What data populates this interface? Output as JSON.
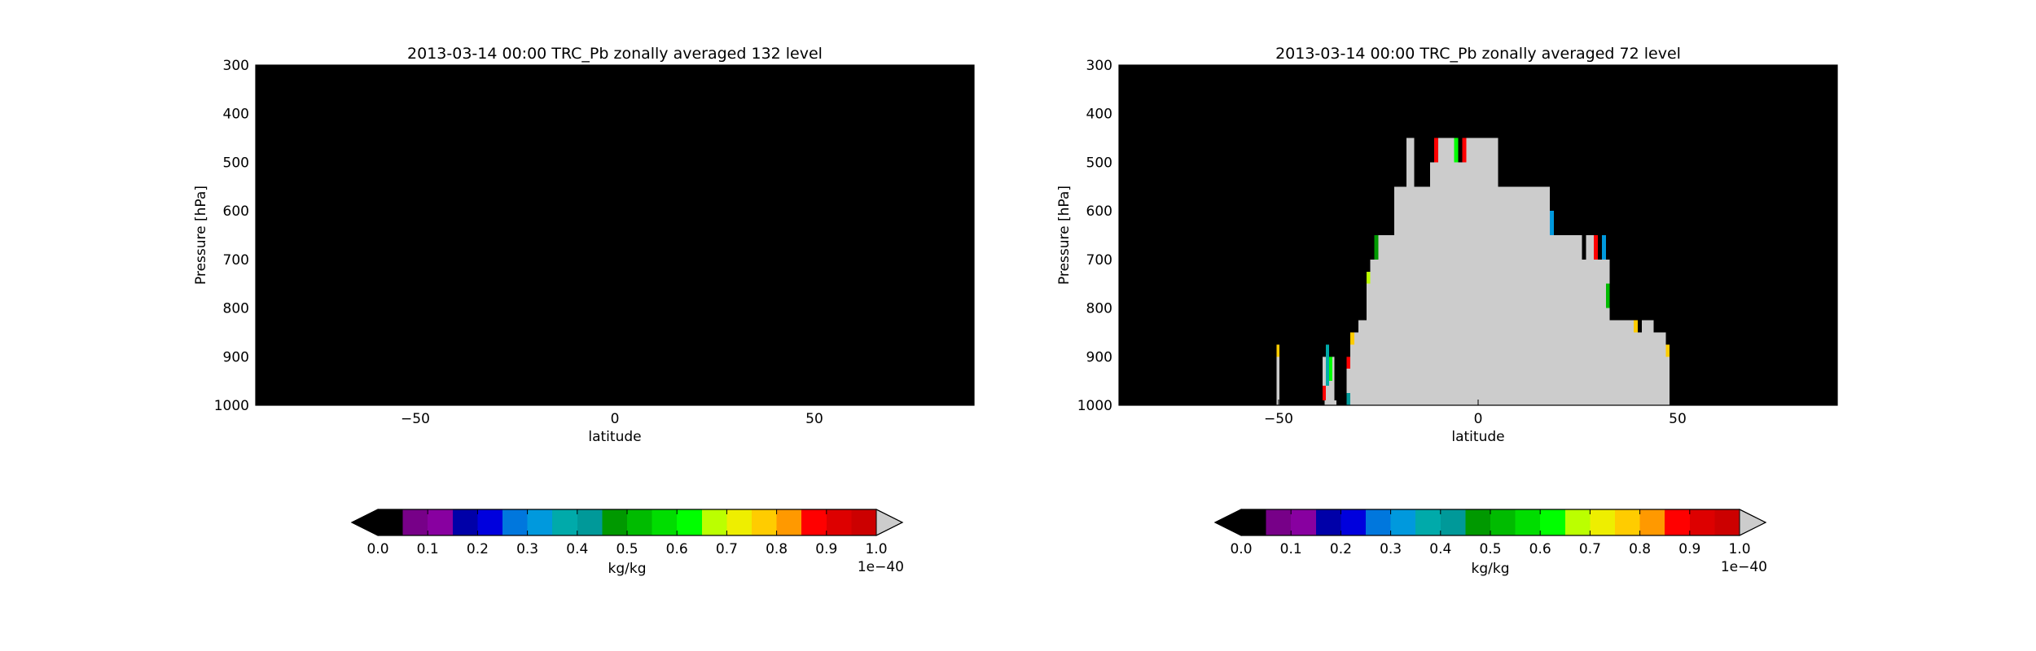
{
  "chart_data": [
    {
      "type": "heatmap",
      "title": "2013-03-14 00:00 TRC_Pb zonally averaged 132 level",
      "xlabel": "latitude",
      "ylabel": "Pressure [hPa]",
      "xlim": [
        -90,
        90
      ],
      "ylim": [
        1000,
        300
      ],
      "xticks": [
        -50,
        0,
        50
      ],
      "xtick_labels": [
        "−50",
        "0",
        "50"
      ],
      "yticks": [
        300,
        400,
        500,
        600,
        700,
        800,
        900,
        1000
      ],
      "ytick_labels": [
        "300",
        "400",
        "500",
        "600",
        "700",
        "800",
        "900",
        "1000"
      ],
      "grid": false,
      "background_value": 0.0,
      "filled_regions": [],
      "colorbar": {
        "label": "kg/kg",
        "min": 0.0,
        "max": 1.0,
        "levels": 20,
        "extend": "both",
        "ticks": [
          0.0,
          0.1,
          0.2,
          0.3,
          0.4,
          0.5,
          0.6,
          0.7,
          0.8,
          0.9,
          1.0
        ],
        "tick_labels": [
          "0.0",
          "0.1",
          "0.2",
          "0.3",
          "0.4",
          "0.5",
          "0.6",
          "0.7",
          "0.8",
          "0.9",
          "1.0"
        ],
        "offset_text": "1e−40"
      }
    },
    {
      "type": "heatmap",
      "title": "2013-03-14 00:00 TRC_Pb zonally averaged 72 level",
      "xlabel": "latitude",
      "ylabel": "Pressure [hPa]",
      "xlim": [
        -90,
        90
      ],
      "ylim": [
        1000,
        300
      ],
      "xticks": [
        -50,
        0,
        50
      ],
      "xtick_labels": [
        "−50",
        "0",
        "50"
      ],
      "yticks": [
        300,
        400,
        500,
        600,
        700,
        800,
        900,
        1000
      ],
      "ytick_labels": [
        "300",
        "400",
        "500",
        "600",
        "700",
        "800",
        "900",
        "1000"
      ],
      "grid": false,
      "background_value": 0.0,
      "filled_regions": [
        {
          "lat": [
            -50.5,
            -49.8
          ],
          "p": [
            875,
            1000
          ],
          "value": 1.0
        },
        {
          "lat": [
            -50.5,
            -49.8
          ],
          "p": [
            875,
            900
          ],
          "value": 0.77
        },
        {
          "lat": [
            -38.5,
            -35.5
          ],
          "p": [
            990,
            1000
          ],
          "value": 1.0
        },
        {
          "lat": [
            -39,
            -36
          ],
          "p": [
            900,
            990
          ],
          "value": 1.0
        },
        {
          "lat": [
            -39,
            -38.2
          ],
          "p": [
            960,
            990
          ],
          "value": 0.86
        },
        {
          "lat": [
            -38.2,
            -37.3
          ],
          "p": [
            875,
            960
          ],
          "value": 0.35
        },
        {
          "lat": [
            -37.3,
            -36.5
          ],
          "p": [
            900,
            950
          ],
          "value": 0.6
        },
        {
          "lat": [
            -33,
            -32
          ],
          "p": [
            975,
            1000
          ],
          "value": 0.4
        },
        {
          "lat": [
            -33,
            -32
          ],
          "p": [
            900,
            975
          ],
          "value": 1.0
        },
        {
          "lat": [
            -33,
            -32
          ],
          "p": [
            900,
            925
          ],
          "value": 0.86
        },
        {
          "lat": [
            -32,
            -30
          ],
          "p": [
            850,
            1000
          ],
          "value": 1.0
        },
        {
          "lat": [
            -32,
            -31
          ],
          "p": [
            850,
            875
          ],
          "value": 0.77
        },
        {
          "lat": [
            -30,
            -28
          ],
          "p": [
            825,
            1000
          ],
          "value": 1.0
        },
        {
          "lat": [
            -28,
            -27
          ],
          "p": [
            725,
            1000
          ],
          "value": 1.0
        },
        {
          "lat": [
            -28,
            -27
          ],
          "p": [
            725,
            750
          ],
          "value": 0.66
        },
        {
          "lat": [
            -27,
            -26
          ],
          "p": [
            700,
            1000
          ],
          "value": 1.0
        },
        {
          "lat": [
            -26,
            -25
          ],
          "p": [
            650,
            1000
          ],
          "value": 1.0
        },
        {
          "lat": [
            -26,
            -25
          ],
          "p": [
            650,
            700
          ],
          "value": 0.45
        },
        {
          "lat": [
            -25,
            -21
          ],
          "p": [
            650,
            1000
          ],
          "value": 1.0
        },
        {
          "lat": [
            -21,
            -18
          ],
          "p": [
            550,
            1000
          ],
          "value": 1.0
        },
        {
          "lat": [
            -18,
            -16
          ],
          "p": [
            450,
            1000
          ],
          "value": 1.0
        },
        {
          "lat": [
            -16,
            -12
          ],
          "p": [
            550,
            1000
          ],
          "value": 1.0
        },
        {
          "lat": [
            -12,
            -11
          ],
          "p": [
            500,
            1000
          ],
          "value": 1.0
        },
        {
          "lat": [
            -11,
            -10
          ],
          "p": [
            450,
            1000
          ],
          "value": 1.0
        },
        {
          "lat": [
            -11,
            -10
          ],
          "p": [
            450,
            500
          ],
          "value": 0.86
        },
        {
          "lat": [
            -10,
            -6
          ],
          "p": [
            450,
            1000
          ],
          "value": 1.0
        },
        {
          "lat": [
            -6,
            -5
          ],
          "p": [
            450,
            1000
          ],
          "value": 1.0
        },
        {
          "lat": [
            -6,
            -5
          ],
          "p": [
            450,
            500
          ],
          "value": 0.6
        },
        {
          "lat": [
            -5,
            -4
          ],
          "p": [
            500,
            1000
          ],
          "value": 1.0
        },
        {
          "lat": [
            -4,
            -3
          ],
          "p": [
            450,
            1000
          ],
          "value": 1.0
        },
        {
          "lat": [
            -4,
            -3
          ],
          "p": [
            450,
            500
          ],
          "value": 0.86
        },
        {
          "lat": [
            -3,
            5
          ],
          "p": [
            450,
            1000
          ],
          "value": 1.0
        },
        {
          "lat": [
            5,
            18
          ],
          "p": [
            550,
            1000
          ],
          "value": 1.0
        },
        {
          "lat": [
            18,
            19
          ],
          "p": [
            600,
            1000
          ],
          "value": 1.0
        },
        {
          "lat": [
            18,
            19
          ],
          "p": [
            600,
            650
          ],
          "value": 0.3
        },
        {
          "lat": [
            19,
            26
          ],
          "p": [
            650,
            1000
          ],
          "value": 1.0
        },
        {
          "lat": [
            26,
            27
          ],
          "p": [
            700,
            1000
          ],
          "value": 1.0
        },
        {
          "lat": [
            27,
            29
          ],
          "p": [
            650,
            1000
          ],
          "value": 1.0
        },
        {
          "lat": [
            29,
            30
          ],
          "p": [
            650,
            1000
          ],
          "value": 1.0
        },
        {
          "lat": [
            29,
            30
          ],
          "p": [
            650,
            700
          ],
          "value": 0.86
        },
        {
          "lat": [
            30,
            31
          ],
          "p": [
            700,
            1000
          ],
          "value": 1.0
        },
        {
          "lat": [
            31,
            32
          ],
          "p": [
            650,
            1000
          ],
          "value": 1.0
        },
        {
          "lat": [
            31,
            32
          ],
          "p": [
            650,
            700
          ],
          "value": 0.3
        },
        {
          "lat": [
            32,
            33
          ],
          "p": [
            700,
            1000
          ],
          "value": 1.0
        },
        {
          "lat": [
            32,
            33
          ],
          "p": [
            750,
            800
          ],
          "value": 0.53
        },
        {
          "lat": [
            33,
            39
          ],
          "p": [
            825,
            1000
          ],
          "value": 1.0
        },
        {
          "lat": [
            39,
            40
          ],
          "p": [
            825,
            1000
          ],
          "value": 1.0
        },
        {
          "lat": [
            39,
            40
          ],
          "p": [
            825,
            850
          ],
          "value": 0.77
        },
        {
          "lat": [
            40,
            41
          ],
          "p": [
            850,
            1000
          ],
          "value": 1.0
        },
        {
          "lat": [
            41,
            44
          ],
          "p": [
            825,
            1000
          ],
          "value": 1.0
        },
        {
          "lat": [
            44,
            47
          ],
          "p": [
            850,
            1000
          ],
          "value": 1.0
        },
        {
          "lat": [
            47,
            48
          ],
          "p": [
            875,
            1000
          ],
          "value": 1.0
        },
        {
          "lat": [
            47,
            48
          ],
          "p": [
            875,
            900
          ],
          "value": 0.77
        }
      ],
      "colorbar": {
        "label": "kg/kg",
        "min": 0.0,
        "max": 1.0,
        "levels": 20,
        "extend": "both",
        "ticks": [
          0.0,
          0.1,
          0.2,
          0.3,
          0.4,
          0.5,
          0.6,
          0.7,
          0.8,
          0.9,
          1.0
        ],
        "tick_labels": [
          "0.0",
          "0.1",
          "0.2",
          "0.3",
          "0.4",
          "0.5",
          "0.6",
          "0.7",
          "0.8",
          "0.9",
          "1.0"
        ],
        "offset_text": "1e−40"
      }
    }
  ],
  "colors": {
    "background": "#000000",
    "axes_frame": "#000000",
    "colormap": [
      "#000000",
      "#770088",
      "#8800a0",
      "#0000a8",
      "#0000dd",
      "#0077dd",
      "#0099dd",
      "#00aaaa",
      "#009999",
      "#009900",
      "#00bb00",
      "#00dd00",
      "#00ff00",
      "#bbff00",
      "#eeee00",
      "#ffcc00",
      "#ff9900",
      "#ff0000",
      "#dd0000",
      "#cc0000"
    ],
    "over_color": "#cccccc",
    "under_color": "#000000"
  }
}
